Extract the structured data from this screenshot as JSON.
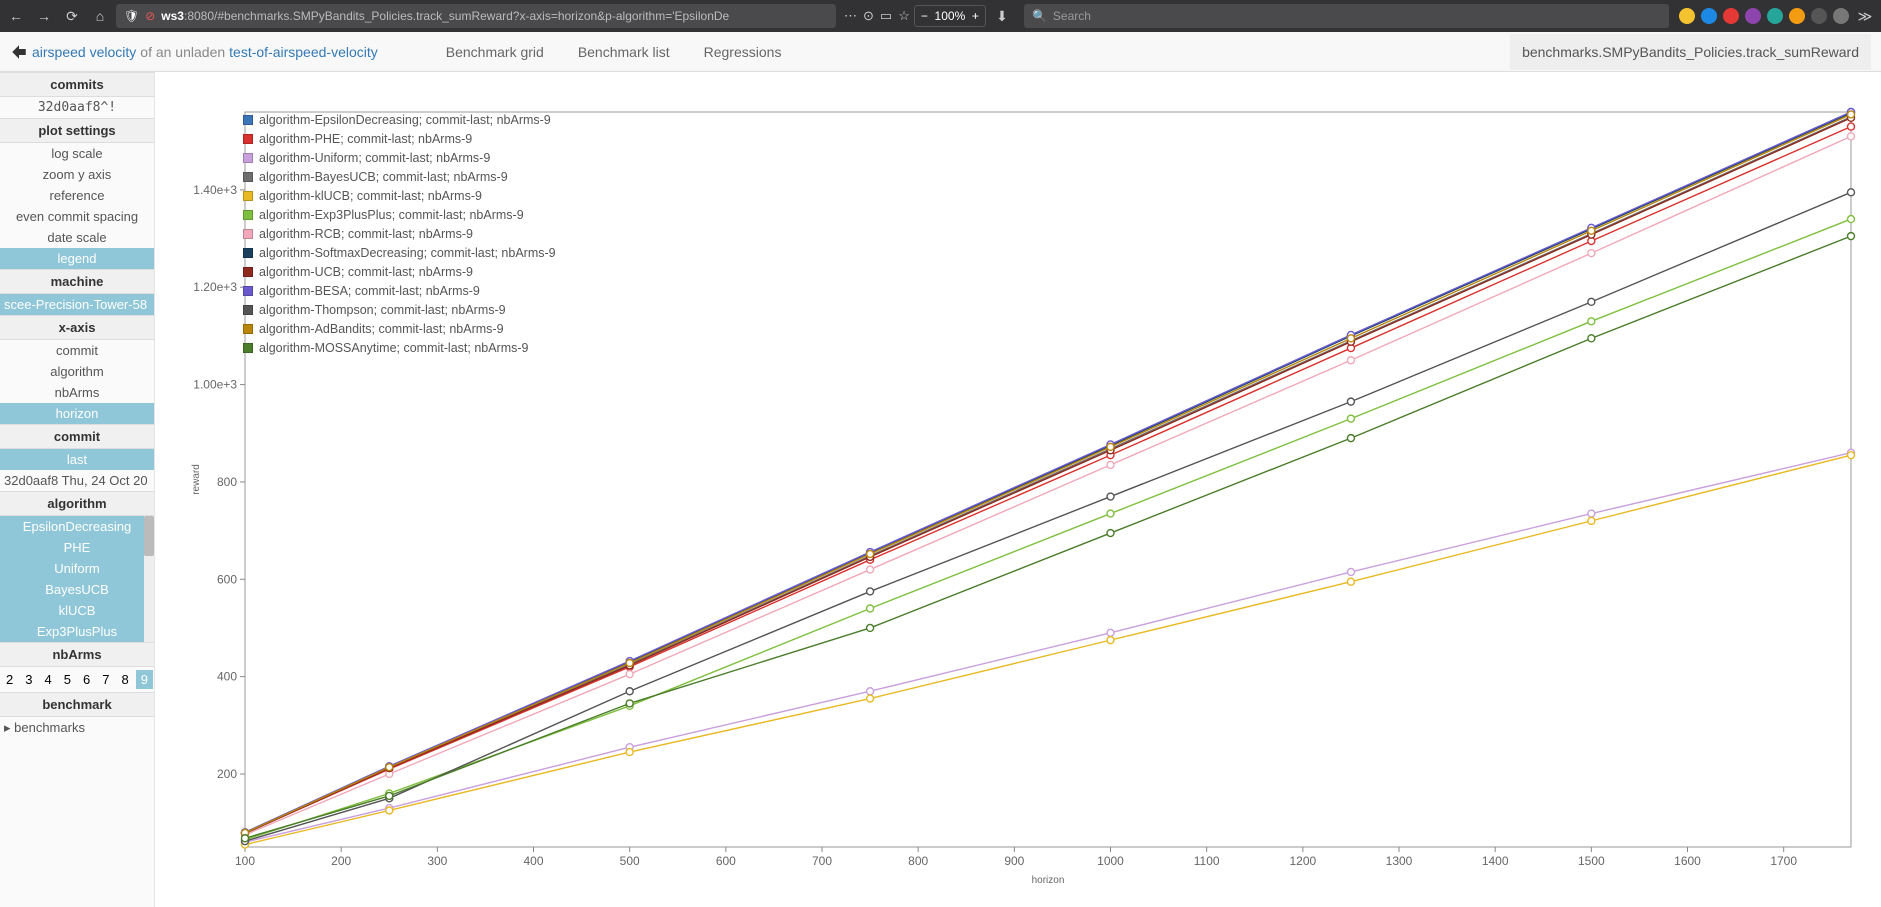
{
  "browser": {
    "url_host": "ws3",
    "url_port": ":8080",
    "url_path": "/#benchmarks.SMPyBandits_Policies.track_sumReward?x-axis=horizon&p-algorithm='EpsilonDe",
    "zoom": "100%",
    "search_placeholder": "Search",
    "tray_colors": [
      "#f4c430",
      "#1e88e5",
      "#e53935",
      "#8e44ad",
      "#26a69a",
      "#f39c12",
      "#555",
      "#777"
    ]
  },
  "nav": {
    "brand_link1": "airspeed velocity",
    "brand_mid": " of an unladen ",
    "brand_link2": "test-of-airspeed-velocity",
    "items": [
      "Benchmark grid",
      "Benchmark list",
      "Regressions"
    ],
    "active": "benchmarks.SMPyBandits_Policies.track_sumReward"
  },
  "sidebar": {
    "commits_header": "commits",
    "commit_value": "32d0aaf8^!",
    "plot_settings_header": "plot settings",
    "plot_settings": [
      {
        "label": "log scale",
        "selected": false
      },
      {
        "label": "zoom y axis",
        "selected": false
      },
      {
        "label": "reference",
        "selected": false
      },
      {
        "label": "even commit spacing",
        "selected": false
      },
      {
        "label": "date scale",
        "selected": false
      },
      {
        "label": "legend",
        "selected": true
      }
    ],
    "machine_header": "machine",
    "machine_value": "scee-Precision-Tower-58",
    "xaxis_header": "x-axis",
    "xaxis_items": [
      {
        "label": "commit",
        "selected": false
      },
      {
        "label": "algorithm",
        "selected": false
      },
      {
        "label": "nbArms",
        "selected": false
      },
      {
        "label": "horizon",
        "selected": true
      }
    ],
    "commit_header": "commit",
    "commit_items": [
      {
        "label": "last",
        "selected": true
      }
    ],
    "commit_text": "32d0aaf8 Thu, 24 Oct 20",
    "algorithm_header": "algorithm",
    "algorithm_items": [
      {
        "label": "EpsilonDecreasing",
        "selected": true
      },
      {
        "label": "PHE",
        "selected": true
      },
      {
        "label": "Uniform",
        "selected": true
      },
      {
        "label": "BayesUCB",
        "selected": true
      },
      {
        "label": "klUCB",
        "selected": true
      },
      {
        "label": "Exp3PlusPlus",
        "selected": true
      }
    ],
    "nbarms_header": "nbArms",
    "nbarms_values": [
      "2",
      "3",
      "4",
      "5",
      "6",
      "7",
      "8",
      "9"
    ],
    "nbarms_selected_idx": 7,
    "benchmark_header": "benchmark",
    "benchmark_item": "benchmarks"
  },
  "chart": {
    "type": "line",
    "xlabel": "horizon",
    "ylabel": "reward",
    "xlim": [
      100,
      1770
    ],
    "ylim": [
      50,
      1560
    ],
    "xticks": [
      100,
      200,
      300,
      400,
      500,
      600,
      700,
      800,
      900,
      1000,
      1100,
      1200,
      1300,
      1400,
      1500,
      1600,
      1700
    ],
    "yticks": [
      200,
      400,
      600,
      800,
      1000,
      1200,
      1400
    ],
    "ytick_labels": [
      "200",
      "400",
      "600",
      "800",
      "1.00e+3",
      "1.20e+3",
      "1.40e+3"
    ],
    "x_data": [
      100,
      250,
      500,
      750,
      1000,
      1250,
      1500,
      1770
    ],
    "plot_bg": "#ffffff",
    "border_color": "#999999",
    "series": [
      {
        "name": "algorithm-EpsilonDecreasing; commit-last; nbArms-9",
        "color": "#3b74b8",
        "y": [
          80,
          215,
          430,
          655,
          875,
          1100,
          1320,
          1560
        ]
      },
      {
        "name": "algorithm-PHE; commit-last; nbArms-9",
        "color": "#d9322e",
        "y": [
          78,
          210,
          420,
          640,
          855,
          1075,
          1295,
          1530
        ]
      },
      {
        "name": "algorithm-Uniform; commit-last; nbArms-9",
        "color": "#c9a0dc",
        "y": [
          60,
          130,
          255,
          370,
          490,
          615,
          735,
          860
        ]
      },
      {
        "name": "algorithm-BayesUCB; commit-last; nbArms-9",
        "color": "#6e6e6e",
        "y": [
          78,
          213,
          425,
          648,
          868,
          1090,
          1310,
          1550
        ]
      },
      {
        "name": "algorithm-klUCB; commit-last; nbArms-9",
        "color": "#e8b923",
        "y": [
          55,
          125,
          245,
          355,
          475,
          595,
          720,
          855
        ]
      },
      {
        "name": "algorithm-Exp3PlusPlus; commit-last; nbArms-9",
        "color": "#7fbf3f",
        "y": [
          65,
          160,
          340,
          540,
          735,
          930,
          1130,
          1340
        ]
      },
      {
        "name": "algorithm-RCB; commit-last; nbArms-9",
        "color": "#f0a8b8",
        "y": [
          75,
          200,
          405,
          620,
          835,
          1050,
          1270,
          1510
        ]
      },
      {
        "name": "algorithm-SoftmaxDecreasing; commit-last; nbArms-9",
        "color": "#1a405f",
        "y": [
          80,
          215,
          430,
          655,
          875,
          1100,
          1320,
          1558
        ]
      },
      {
        "name": "algorithm-UCB; commit-last; nbArms-9",
        "color": "#8c2a1f",
        "y": [
          78,
          212,
          423,
          646,
          865,
          1088,
          1308,
          1548
        ]
      },
      {
        "name": "algorithm-BESA; commit-last; nbArms-9",
        "color": "#6a5acd",
        "y": [
          80,
          216,
          432,
          656,
          877,
          1102,
          1322,
          1560
        ]
      },
      {
        "name": "algorithm-Thompson; commit-last; nbArms-9",
        "color": "#555555",
        "y": [
          62,
          150,
          370,
          575,
          770,
          965,
          1170,
          1395
        ]
      },
      {
        "name": "algorithm-AdBandits; commit-last; nbArms-9",
        "color": "#b8860b",
        "y": [
          79,
          214,
          428,
          652,
          872,
          1095,
          1316,
          1555
        ]
      },
      {
        "name": "algorithm-MOSSAnytime; commit-last; nbArms-9",
        "color": "#4a7c2a",
        "y": [
          68,
          155,
          345,
          500,
          695,
          890,
          1095,
          1305
        ]
      }
    ],
    "marker_radius": 3.5,
    "line_width": 1.4,
    "label_fontsize": 10,
    "tick_fontsize": 12
  }
}
